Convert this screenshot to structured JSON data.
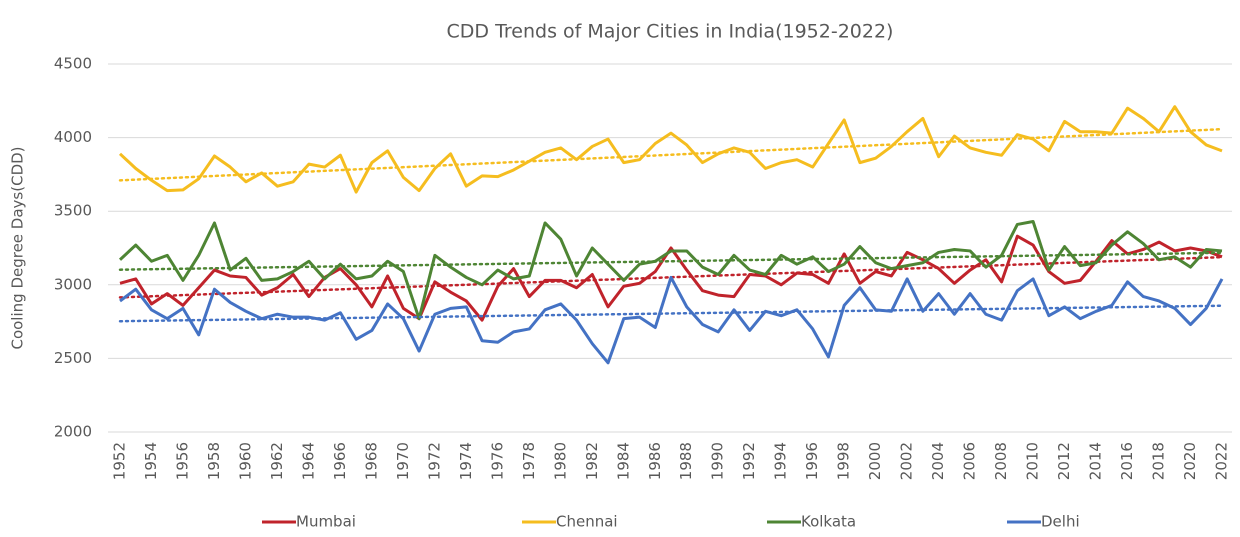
{
  "chart_data": {
    "type": "line",
    "title": "CDD Trends of Major Cities in India(1952-2022)",
    "y_label": "Cooling Degree Days(CDD)",
    "x": [
      1952,
      1953,
      1954,
      1955,
      1956,
      1957,
      1958,
      1959,
      1960,
      1961,
      1962,
      1963,
      1964,
      1965,
      1966,
      1967,
      1968,
      1969,
      1970,
      1971,
      1972,
      1973,
      1974,
      1975,
      1976,
      1977,
      1978,
      1979,
      1980,
      1981,
      1982,
      1983,
      1984,
      1985,
      1986,
      1987,
      1988,
      1989,
      1990,
      1991,
      1992,
      1993,
      1994,
      1995,
      1996,
      1997,
      1998,
      1999,
      2000,
      2001,
      2002,
      2003,
      2004,
      2005,
      2006,
      2007,
      2008,
      2009,
      2010,
      2011,
      2012,
      2013,
      2014,
      2015,
      2016,
      2017,
      2018,
      2019,
      2020,
      2021,
      2022
    ],
    "xlim": [
      1952,
      2022
    ],
    "xticks": [
      1952,
      1954,
      1956,
      1958,
      1960,
      1962,
      1964,
      1966,
      1968,
      1970,
      1972,
      1974,
      1976,
      1978,
      1980,
      1982,
      1984,
      1986,
      1988,
      1990,
      1992,
      1994,
      1996,
      1998,
      2000,
      2002,
      2004,
      2006,
      2008,
      2010,
      2012,
      2014,
      2016,
      2018,
      2020,
      2022
    ],
    "ylim": [
      2000,
      4500
    ],
    "yticks": [
      2000,
      2500,
      3000,
      3500,
      4000,
      4500
    ],
    "grid": true,
    "trendline": true,
    "legend": "bottom",
    "series": [
      {
        "name": "Mumbai",
        "color": "#c0232b",
        "values": [
          3010,
          3040,
          2870,
          2940,
          2860,
          2980,
          3100,
          3060,
          3050,
          2930,
          2980,
          3070,
          2920,
          3050,
          3110,
          3000,
          2850,
          3060,
          2840,
          2770,
          3020,
          2950,
          2890,
          2760,
          2990,
          3110,
          2920,
          3030,
          3030,
          2980,
          3070,
          2850,
          2990,
          3010,
          3090,
          3250,
          3100,
          2960,
          2930,
          2920,
          3070,
          3060,
          3000,
          3080,
          3070,
          3010,
          3210,
          3010,
          3090,
          3060,
          3220,
          3170,
          3110,
          3010,
          3100,
          3170,
          3020,
          3330,
          3270,
          3090,
          3010,
          3030,
          3160,
          3300,
          3210,
          3240,
          3290,
          3230,
          3250,
          3230,
          3190
        ]
      },
      {
        "name": "Chennai",
        "color": "#f5bd1f",
        "values": [
          3890,
          3790,
          3710,
          3640,
          3645,
          3720,
          3875,
          3800,
          3700,
          3760,
          3670,
          3700,
          3820,
          3800,
          3880,
          3630,
          3830,
          3910,
          3730,
          3640,
          3790,
          3890,
          3670,
          3740,
          3735,
          3780,
          3840,
          3900,
          3930,
          3850,
          3940,
          3990,
          3830,
          3850,
          3960,
          4030,
          3950,
          3830,
          3890,
          3930,
          3900,
          3790,
          3830,
          3850,
          3800,
          3960,
          4120,
          3830,
          3860,
          3940,
          4040,
          4130,
          3870,
          4010,
          3930,
          3900,
          3880,
          4020,
          3990,
          3910,
          4110,
          4040,
          4040,
          4030,
          4200,
          4130,
          4040,
          4210,
          4040,
          3950,
          3910
        ]
      },
      {
        "name": "Kolkata",
        "color": "#4e8534",
        "values": [
          3170,
          3270,
          3160,
          3200,
          3030,
          3200,
          3420,
          3100,
          3180,
          3030,
          3040,
          3090,
          3160,
          3040,
          3140,
          3040,
          3060,
          3160,
          3090,
          2770,
          3200,
          3120,
          3050,
          3000,
          3100,
          3040,
          3060,
          3420,
          3310,
          3060,
          3250,
          3140,
          3030,
          3140,
          3160,
          3230,
          3230,
          3120,
          3070,
          3200,
          3100,
          3070,
          3200,
          3140,
          3190,
          3090,
          3140,
          3260,
          3150,
          3110,
          3130,
          3150,
          3220,
          3240,
          3230,
          3120,
          3200,
          3410,
          3430,
          3100,
          3260,
          3130,
          3150,
          3270,
          3360,
          3280,
          3170,
          3190,
          3120,
          3240,
          3230
        ]
      },
      {
        "name": "Delhi",
        "color": "#4472c4",
        "values": [
          2890,
          2970,
          2830,
          2770,
          2840,
          2660,
          2970,
          2880,
          2820,
          2770,
          2800,
          2780,
          2780,
          2760,
          2810,
          2630,
          2690,
          2870,
          2770,
          2550,
          2800,
          2840,
          2850,
          2620,
          2610,
          2680,
          2700,
          2830,
          2870,
          2760,
          2600,
          2470,
          2770,
          2780,
          2710,
          3050,
          2850,
          2730,
          2680,
          2830,
          2690,
          2820,
          2790,
          2830,
          2700,
          2510,
          2860,
          2980,
          2830,
          2820,
          3040,
          2820,
          2940,
          2800,
          2940,
          2800,
          2760,
          2960,
          3040,
          2790,
          2850,
          2770,
          2820,
          2860,
          3020,
          2920,
          2890,
          2840,
          2730,
          2840,
          3040
        ]
      }
    ]
  }
}
